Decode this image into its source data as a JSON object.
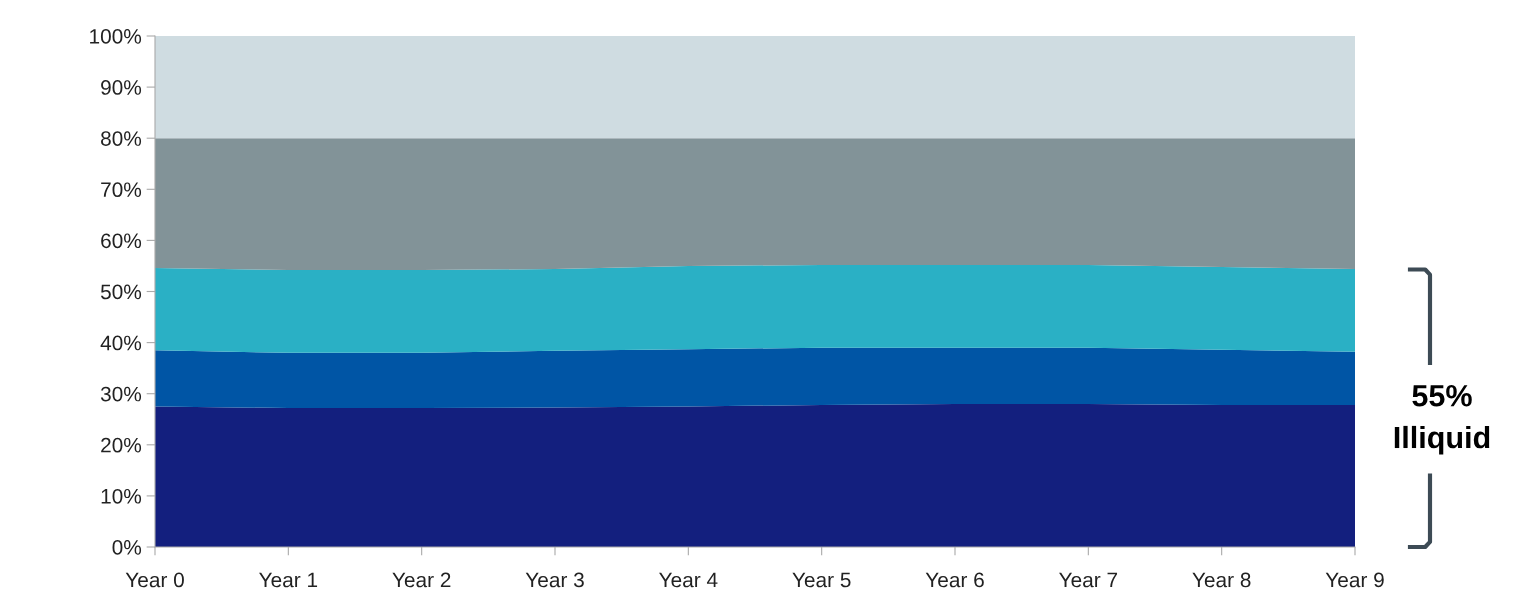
{
  "chart_data": {
    "type": "area",
    "stacked": true,
    "categories": [
      "Year 0",
      "Year 1",
      "Year 2",
      "Year 3",
      "Year 4",
      "Year 5",
      "Year 6",
      "Year 7",
      "Year 8",
      "Year 9"
    ],
    "series": [
      {
        "color": "#131f7e",
        "values": [
          27.5,
          27.2,
          27.2,
          27.3,
          27.5,
          27.8,
          28,
          28,
          27.8,
          27.8
        ]
      },
      {
        "color": "#0055a5",
        "values": [
          11,
          10.8,
          10.8,
          11.1,
          11.2,
          11.2,
          11,
          11,
          10.8,
          10.4
        ]
      },
      {
        "color": "#2ab0c5",
        "values": [
          16.1,
          16.2,
          16.2,
          16,
          16.3,
          16.2,
          16.2,
          16.2,
          16.2,
          16.2
        ]
      },
      {
        "color": "#829398",
        "values": [
          25.4,
          25.8,
          25.8,
          25.6,
          25,
          24.8,
          24.8,
          24.8,
          25.2,
          25.6
        ]
      },
      {
        "color": "#cfdce1",
        "values": [
          20,
          20,
          20,
          20,
          20,
          20,
          20,
          20,
          20,
          20
        ]
      }
    ],
    "ylim": [
      0,
      100
    ],
    "yticks": [
      {
        "value": 0,
        "label": "0%"
      },
      {
        "value": 10,
        "label": "10%"
      },
      {
        "value": 20,
        "label": "20%"
      },
      {
        "value": 30,
        "label": "30%"
      },
      {
        "value": 40,
        "label": "40%"
      },
      {
        "value": 50,
        "label": "50%"
      },
      {
        "value": 60,
        "label": "60%"
      },
      {
        "value": 70,
        "label": "70%"
      },
      {
        "value": 80,
        "label": "80%"
      },
      {
        "value": 90,
        "label": "90%"
      },
      {
        "value": 100,
        "label": "100%"
      }
    ],
    "grid": false,
    "legend": false,
    "annotations": [
      "55%\nIlliquid"
    ]
  }
}
